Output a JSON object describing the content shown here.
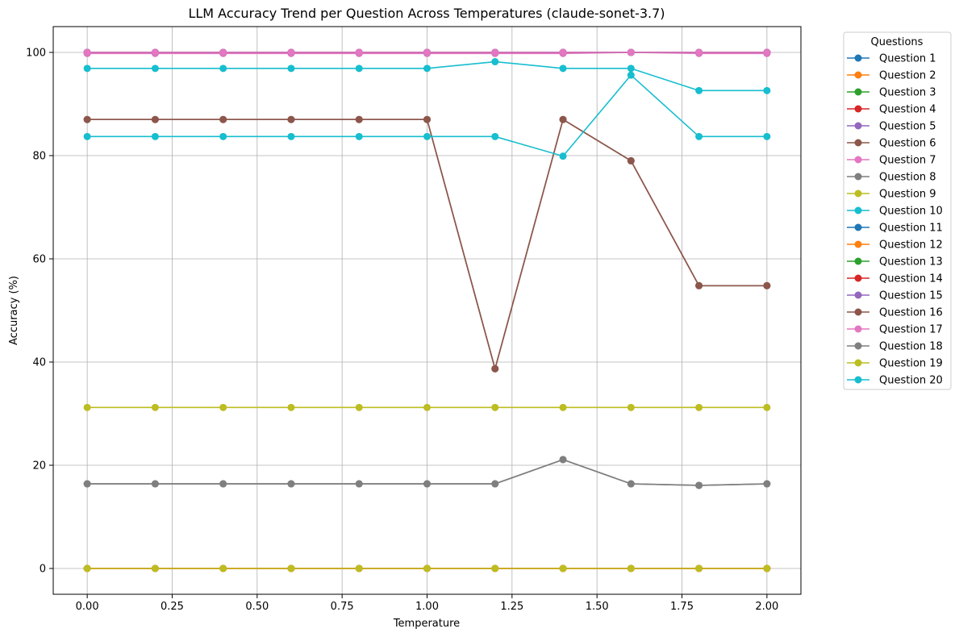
{
  "chart_data": {
    "type": "line",
    "title": "LLM Accuracy Trend per Question Across Temperatures (claude-sonet-3.7)",
    "xlabel": "Temperature",
    "ylabel": "Accuracy (%)",
    "xlim": [
      -0.1,
      2.1
    ],
    "ylim": [
      -5,
      105
    ],
    "grid": true,
    "legend": {
      "title": "Questions",
      "placement": "outside-right"
    },
    "x": [
      0.0,
      0.2,
      0.4,
      0.6,
      0.8,
      1.0,
      1.2,
      1.4,
      1.6,
      1.8,
      2.0
    ],
    "x_ticks": [
      0.0,
      0.25,
      0.5,
      0.75,
      1.0,
      1.25,
      1.5,
      1.75,
      2.0
    ],
    "x_tick_labels": [
      "0.00",
      "0.25",
      "0.50",
      "0.75",
      "1.00",
      "1.25",
      "1.50",
      "1.75",
      "2.00"
    ],
    "y_ticks": [
      0,
      20,
      40,
      60,
      80,
      100
    ],
    "y_tick_labels": [
      "0",
      "20",
      "40",
      "60",
      "80",
      "100"
    ],
    "series": [
      {
        "name": "Question 1",
        "color": "#1f77b4",
        "values": [
          100,
          100,
          100,
          100,
          100,
          100,
          100,
          100,
          100,
          100,
          100
        ]
      },
      {
        "name": "Question 2",
        "color": "#ff7f0e",
        "values": [
          0,
          0,
          0,
          0,
          0,
          0,
          0,
          0,
          0,
          0,
          0
        ]
      },
      {
        "name": "Question 3",
        "color": "#2ca02c",
        "values": [
          100,
          100,
          100,
          100,
          100,
          100,
          100,
          100,
          100,
          100,
          100
        ]
      },
      {
        "name": "Question 4",
        "color": "#d62728",
        "values": [
          0,
          0,
          0,
          0,
          0,
          0,
          0,
          0,
          0,
          0,
          0
        ]
      },
      {
        "name": "Question 5",
        "color": "#9467bd",
        "values": [
          100,
          100,
          100,
          100,
          100,
          100,
          100,
          100,
          100,
          100,
          100
        ]
      },
      {
        "name": "Question 6",
        "color": "#8c564b",
        "values": [
          87,
          87,
          87,
          87,
          87,
          87,
          38.7,
          87,
          79,
          54.8,
          54.8
        ]
      },
      {
        "name": "Question 7",
        "color": "#e377c2",
        "values": [
          99.8,
          99.8,
          99.8,
          99.8,
          99.8,
          99.8,
          99.8,
          99.8,
          100,
          99.8,
          99.8
        ]
      },
      {
        "name": "Question 8",
        "color": "#7f7f7f",
        "values": [
          16.4,
          16.4,
          16.4,
          16.4,
          16.4,
          16.4,
          16.4,
          21.1,
          16.4,
          16.1,
          16.4
        ]
      },
      {
        "name": "Question 9",
        "color": "#bcbd22",
        "values": [
          31.2,
          31.2,
          31.2,
          31.2,
          31.2,
          31.2,
          31.2,
          31.2,
          31.2,
          31.2,
          31.2
        ]
      },
      {
        "name": "Question 10",
        "color": "#17becf",
        "values": [
          96.9,
          96.9,
          96.9,
          96.9,
          96.9,
          96.9,
          98.2,
          96.9,
          96.9,
          92.6,
          92.6
        ]
      },
      {
        "name": "Question 11",
        "color": "#1f77b4",
        "values": [
          100,
          100,
          100,
          100,
          100,
          100,
          100,
          100,
          100,
          100,
          100
        ]
      },
      {
        "name": "Question 12",
        "color": "#ff7f0e",
        "values": [
          0,
          0,
          0,
          0,
          0,
          0,
          0,
          0,
          0,
          0,
          0
        ]
      },
      {
        "name": "Question 13",
        "color": "#2ca02c",
        "values": [
          100,
          100,
          100,
          100,
          100,
          100,
          100,
          100,
          100,
          100,
          100
        ]
      },
      {
        "name": "Question 14",
        "color": "#d62728",
        "values": [
          100,
          100,
          100,
          100,
          100,
          100,
          100,
          100,
          100,
          100,
          100
        ]
      },
      {
        "name": "Question 15",
        "color": "#9467bd",
        "values": [
          100,
          100,
          100,
          100,
          100,
          100,
          100,
          100,
          100,
          100,
          100
        ]
      },
      {
        "name": "Question 16",
        "color": "#8c564b",
        "values": [
          87,
          87,
          87,
          87,
          87,
          87,
          38.7,
          87,
          79,
          54.8,
          54.8
        ]
      },
      {
        "name": "Question 17",
        "color": "#e377c2",
        "values": [
          100,
          100,
          100,
          100,
          100,
          100,
          100,
          100,
          100,
          100,
          100
        ]
      },
      {
        "name": "Question 18",
        "color": "#7f7f7f",
        "values": [
          16.4,
          16.4,
          16.4,
          16.4,
          16.4,
          16.4,
          16.4,
          21.1,
          16.4,
          16.1,
          16.4
        ]
      },
      {
        "name": "Question 19",
        "color": "#bcbd22",
        "values": [
          0,
          0,
          0,
          0,
          0,
          0,
          0,
          0,
          0,
          0,
          0
        ]
      },
      {
        "name": "Question 20",
        "color": "#17becf",
        "values": [
          83.7,
          83.7,
          83.7,
          83.7,
          83.7,
          83.7,
          83.7,
          79.9,
          95.6,
          83.7,
          83.7
        ]
      }
    ]
  }
}
